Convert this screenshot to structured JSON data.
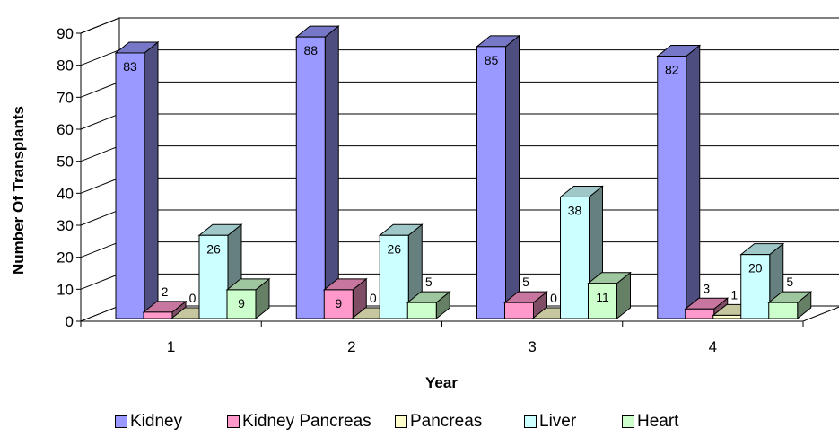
{
  "chart_data": {
    "type": "bar",
    "title": "",
    "xlabel": "Year",
    "ylabel": "Number Of Transplants",
    "categories": [
      "1",
      "2",
      "3",
      "4"
    ],
    "ylim": [
      0,
      90
    ],
    "yticks": [
      "0",
      "10",
      "20",
      "30",
      "40",
      "50",
      "60",
      "70",
      "80",
      "90"
    ],
    "grid": true,
    "legend_position": "bottom",
    "series": [
      {
        "name": "Kidney",
        "values": [
          83,
          88,
          85,
          82
        ],
        "color": "#9999FF"
      },
      {
        "name": "Kidney Pancreas",
        "values": [
          2,
          9,
          5,
          3
        ],
        "color": "#FF99CC"
      },
      {
        "name": "Pancreas",
        "values": [
          0,
          0,
          0,
          1
        ],
        "color": "#FFFFCC"
      },
      {
        "name": "Liver",
        "values": [
          26,
          26,
          38,
          20
        ],
        "color": "#CCFFFF"
      },
      {
        "name": "Heart",
        "values": [
          9,
          5,
          11,
          5
        ],
        "color": "#CCFFCC"
      }
    ]
  }
}
